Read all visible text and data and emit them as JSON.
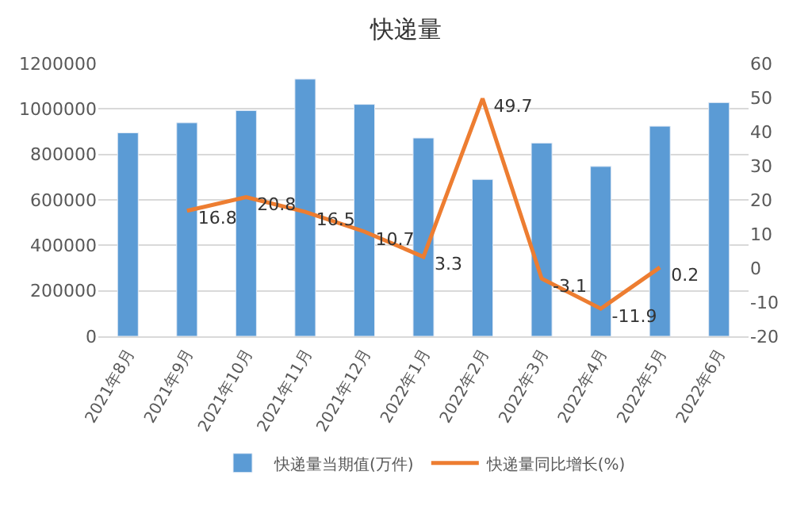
{
  "chart_data": {
    "type": "bar",
    "title": "快递量",
    "categories": [
      "2021年8月",
      "2021年9月",
      "2021年10月",
      "2021年11月",
      "2021年12月",
      "2022年1月",
      "2022年2月",
      "2022年3月",
      "2022年4月",
      "2022年5月",
      "2022年6月"
    ],
    "series": [
      {
        "name": "快递量当期值(万件)",
        "color": "#5b9bd5",
        "values": [
          895000,
          939000,
          993000,
          1131000,
          1020000,
          872000,
          690000,
          850000,
          747000,
          924000,
          1028000
        ]
      },
      {
        "name": "快递量同比增长(%)",
        "type": "line",
        "axis": "y2",
        "color": "#ed7d31",
        "data_labels": true,
        "values": [
          null,
          16.8,
          20.8,
          16.5,
          10.7,
          3.3,
          49.7,
          -3.1,
          -11.9,
          0.2,
          null
        ]
      }
    ],
    "ylim": [
      0,
      1200000
    ],
    "yticks": [
      0,
      200000,
      400000,
      600000,
      800000,
      1000000,
      1200000
    ],
    "y2lim": [
      -20,
      60
    ],
    "y2ticks": [
      -20,
      -10,
      0,
      10,
      20,
      30,
      40,
      50,
      60
    ],
    "grid": "y",
    "legend": "bottom",
    "marker": "none",
    "line_style": "solid"
  }
}
